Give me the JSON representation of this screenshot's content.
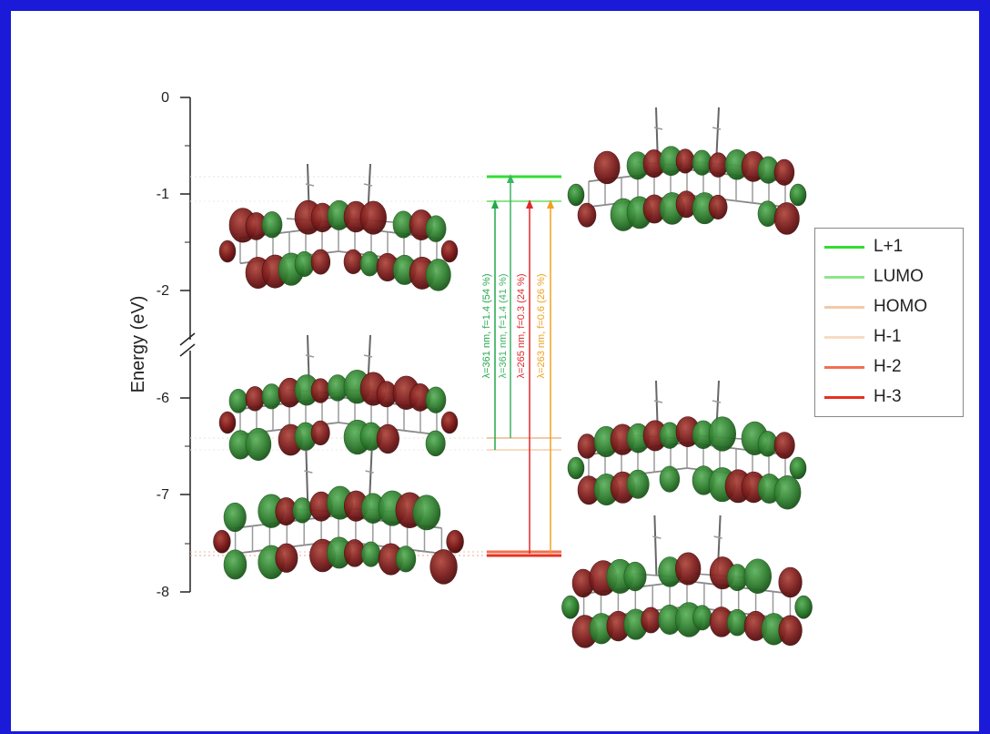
{
  "axis": {
    "title": "Energy (eV)",
    "ticks": [
      "0",
      "-1",
      "-2",
      "-6",
      "-7",
      "-8"
    ]
  },
  "transitions": [
    {
      "label": "λ=361 nm, f=1.4 (54 %)",
      "color": "#22a84a"
    },
    {
      "label": "λ=361 nm, f=1.4 (41 %)",
      "color": "#3cb463"
    },
    {
      "label": "λ=265 nm, f=0.3 (24 %)",
      "color": "#e0282a"
    },
    {
      "label": "λ=263 nm, f=0.6 (26 %)",
      "color": "#f0a020"
    }
  ],
  "legend": [
    {
      "label": "L+1",
      "color": "#33dd33"
    },
    {
      "label": "LUMO",
      "color": "#88e888"
    },
    {
      "label": "HOMO",
      "color": "#f2c9a8"
    },
    {
      "label": "H-1",
      "color": "#f6dcc2"
    },
    {
      "label": "H-2",
      "color": "#f07050"
    },
    {
      "label": "H-3",
      "color": "#e83020"
    }
  ],
  "levels": [
    {
      "name": "L+1",
      "energy": -0.82
    },
    {
      "name": "LUMO",
      "energy": -1.07
    },
    {
      "name": "HOMO",
      "energy": -6.44
    },
    {
      "name": "H-1",
      "energy": -6.55
    },
    {
      "name": "H-2",
      "energy": -7.6
    },
    {
      "name": "H-3",
      "energy": -7.64
    }
  ],
  "colors": {
    "frame": "#1a1ad8",
    "lobe_green": "#2f7d2f",
    "lobe_red": "#7a1c1c"
  },
  "orbitals": [
    "LUMO",
    "L+1",
    "H-1",
    "HOMO",
    "H-3",
    "H-2"
  ]
}
